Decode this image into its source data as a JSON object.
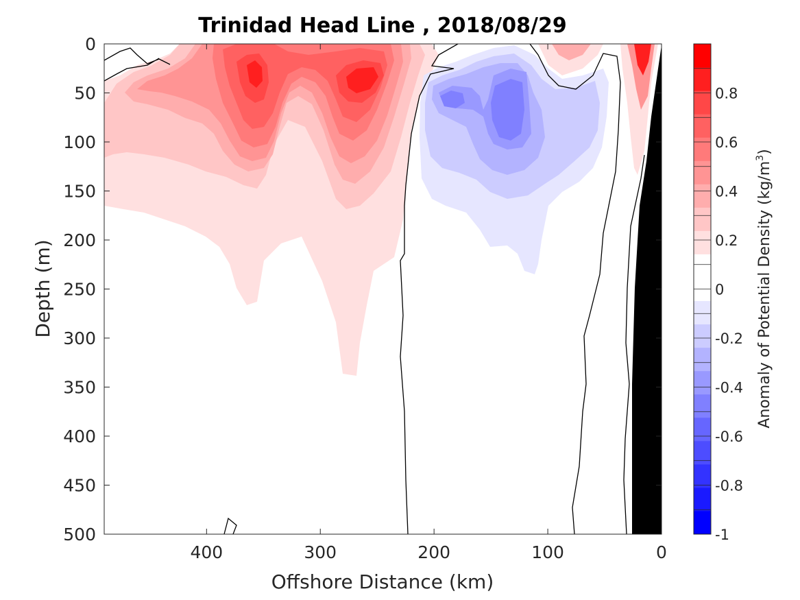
{
  "chart_data": {
    "type": "heatmap",
    "title": "Trinidad Head Line , 2018/08/29",
    "xlabel": "Offshore Distance (km)",
    "ylabel": "Depth (m)",
    "colorbar_label": "Anomaly of Potential Density (kg/m",
    "colorbar_label_sup": "3",
    "colorbar_label_close": ")",
    "x_axis": {
      "ticks": [
        400,
        300,
        200,
        100,
        0
      ],
      "tick_labels": [
        "400",
        "300",
        "200",
        "100",
        "0"
      ],
      "range": [
        490,
        0
      ],
      "reversed": true
    },
    "y_axis": {
      "ticks": [
        0,
        50,
        100,
        150,
        200,
        250,
        300,
        350,
        400,
        450,
        500
      ],
      "tick_labels": [
        "0",
        "50",
        "100",
        "150",
        "200",
        "250",
        "300",
        "350",
        "400",
        "450",
        "500"
      ],
      "range": [
        0,
        500
      ],
      "reversed": true
    },
    "colorbar": {
      "range": [
        -1,
        1
      ],
      "levels": [
        -1,
        -0.9,
        -0.8,
        -0.7,
        -0.6,
        -0.5,
        -0.4,
        -0.3,
        -0.2,
        -0.1,
        0,
        0.1,
        0.2,
        0.3,
        0.4,
        0.5,
        0.6,
        0.7,
        0.8,
        0.9,
        1
      ],
      "ticks": [
        0.8,
        0.6,
        0.4,
        0.2,
        0,
        -0.2,
        -0.4,
        -0.6,
        -0.8,
        -1
      ],
      "tick_labels": [
        "0.8",
        "0.6",
        "0.4",
        "0.2",
        "0",
        "-0.2",
        "-0.4",
        "-0.6",
        "-0.8",
        "-1"
      ],
      "colors": [
        "#0000ff",
        "#1a1aff",
        "#3333ff",
        "#4d4dff",
        "#6666ff",
        "#8080ff",
        "#9999ff",
        "#b3b3ff",
        "#ccccff",
        "#e6e6ff",
        "#ffffff",
        "#ffffff",
        "#ffe0e0",
        "#ffc6c6",
        "#ffadad",
        "#ff9494",
        "#ff7a7a",
        "#ff6161",
        "#ff4747",
        "#ff1f1f",
        "#ff0000"
      ]
    },
    "features": [
      {
        "kind": "positive",
        "x": 360,
        "depth": 40,
        "peak": 0.88
      },
      {
        "kind": "positive",
        "x": 262,
        "depth": 35,
        "peak": 0.95
      },
      {
        "kind": "positive",
        "x": 12,
        "depth": 10,
        "peak": 0.9
      },
      {
        "kind": "positive",
        "x": 80,
        "depth": 5,
        "peak": 0.4
      },
      {
        "kind": "negative",
        "x": 190,
        "depth": 55,
        "peak": -0.45
      },
      {
        "kind": "negative",
        "x": 135,
        "depth": 75,
        "peak": -0.5
      }
    ],
    "bathymetry": {
      "color": "#000000",
      "shore_x": 0,
      "shelf_break_x": 28
    }
  }
}
